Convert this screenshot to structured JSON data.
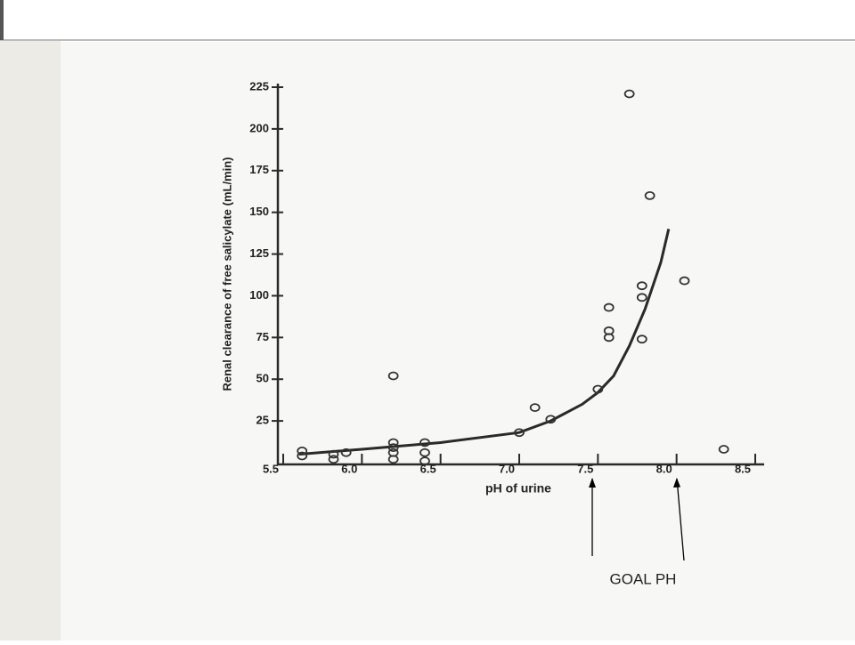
{
  "chart_data": {
    "type": "scatter",
    "x_label": "pH of urine",
    "y_label": "Renal clearance of free salicylate (mL/min)",
    "xlim": [
      5.5,
      8.5
    ],
    "ylim": [
      0,
      225
    ],
    "xticks": [
      5.5,
      {
        "value": 6,
        "label": "6.0"
      },
      6.5,
      {
        "value": 7,
        "label": "7.0"
      },
      7.5,
      {
        "value": 8,
        "label": "8.0"
      },
      8.5
    ],
    "yticks": [
      25,
      50,
      75,
      100,
      125,
      150,
      175,
      200,
      225
    ],
    "color": "#333333",
    "points": {
      "x": [
        5.62,
        5.62,
        5.82,
        5.82,
        5.9,
        6.2,
        6.2,
        6.2,
        6.2,
        6.2,
        6.4,
        6.4,
        6.4,
        7.0,
        7.1,
        7.2,
        7.5,
        7.57,
        7.57,
        7.57,
        7.7,
        7.78,
        7.78,
        7.78,
        7.83,
        8.05,
        8.3
      ],
      "y": [
        7,
        4,
        5,
        2,
        6,
        52,
        12,
        9,
        6,
        2,
        12,
        6,
        1,
        18,
        33,
        26,
        44,
        93,
        75,
        79,
        221,
        106,
        99,
        74,
        160,
        109,
        8
      ]
    },
    "curve": {
      "x": [
        5.6,
        6.0,
        6.5,
        7.0,
        7.2,
        7.4,
        7.5,
        7.6,
        7.7,
        7.8,
        7.9,
        7.95
      ],
      "y": [
        5,
        8,
        12,
        18,
        25,
        35,
        42,
        52,
        70,
        92,
        120,
        140
      ]
    },
    "annotation": "GOAL PH"
  }
}
